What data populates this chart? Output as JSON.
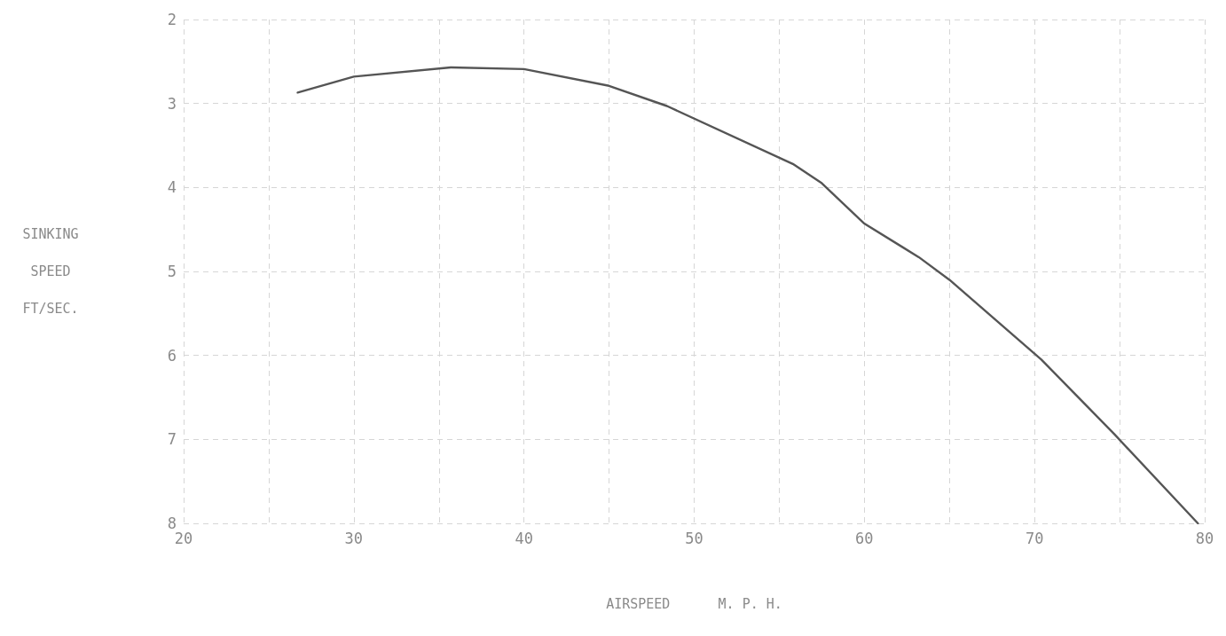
{
  "chart_data": {
    "type": "line",
    "xlabel": "AIRSPEED      M. P. H.",
    "ylabel": "SINKING\nSPEED\nFT/SEC.",
    "x": [
      26.7,
      30,
      35.7,
      40,
      45,
      48.4,
      55.8,
      57.5,
      60,
      63.2,
      65,
      70.4,
      74.7,
      79.6
    ],
    "series": [
      {
        "color": "#555555",
        "values": [
          2.87,
          2.68,
          2.57,
          2.59,
          2.79,
          3.03,
          3.72,
          3.95,
          4.43,
          4.83,
          5.1,
          6.05,
          6.94,
          8.0
        ]
      }
    ],
    "xlim": [
      20,
      80
    ],
    "xticks": [
      20,
      {
        "value": 25,
        "label": null
      },
      30,
      {
        "value": 35,
        "label": null
      },
      40,
      {
        "value": 45,
        "label": null
      },
      50,
      {
        "value": 55,
        "label": null
      },
      60,
      {
        "value": 65,
        "label": null
      },
      70,
      {
        "value": 75,
        "label": null
      },
      80
    ],
    "ylim": [
      8,
      2
    ],
    "yticks": [
      2,
      3,
      4,
      5,
      6,
      7,
      8
    ],
    "grid": true,
    "marker": "none",
    "line_style": "solid"
  }
}
